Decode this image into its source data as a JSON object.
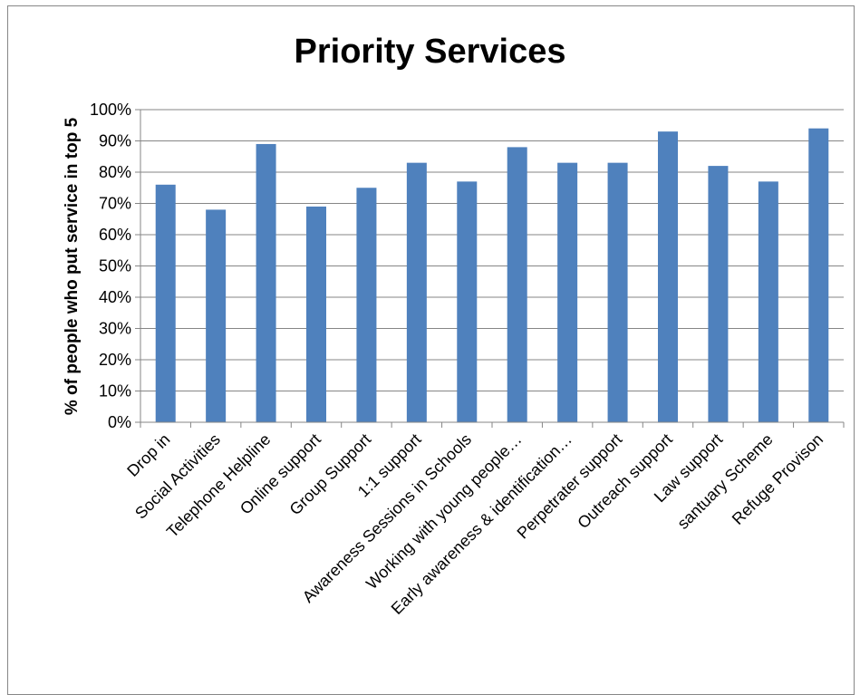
{
  "chart_data": {
    "type": "bar",
    "title": "Priority Services",
    "xlabel": "",
    "ylabel": "% of people who put service in top 5",
    "ylim": [
      0,
      100
    ],
    "yticks": [
      "0%",
      "10%",
      "20%",
      "30%",
      "40%",
      "50%",
      "60%",
      "70%",
      "80%",
      "90%",
      "100%"
    ],
    "grid": true,
    "legend": "none",
    "bar_color": "#4F81BD",
    "categories": [
      "Drop in",
      "Social Activities",
      "Telephone Helpline",
      "Online support",
      "Group Support",
      "1:1 support",
      "Awareness Sessions in Schools",
      "Working with young people…",
      "Early awareness & identification…",
      "Perpetrater support",
      "Outreach support",
      "Law support",
      "santuary Scheme",
      "Refuge Provison"
    ],
    "values": [
      76,
      68,
      89,
      69,
      75,
      83,
      77,
      88,
      83,
      83,
      93,
      82,
      77,
      94
    ]
  }
}
